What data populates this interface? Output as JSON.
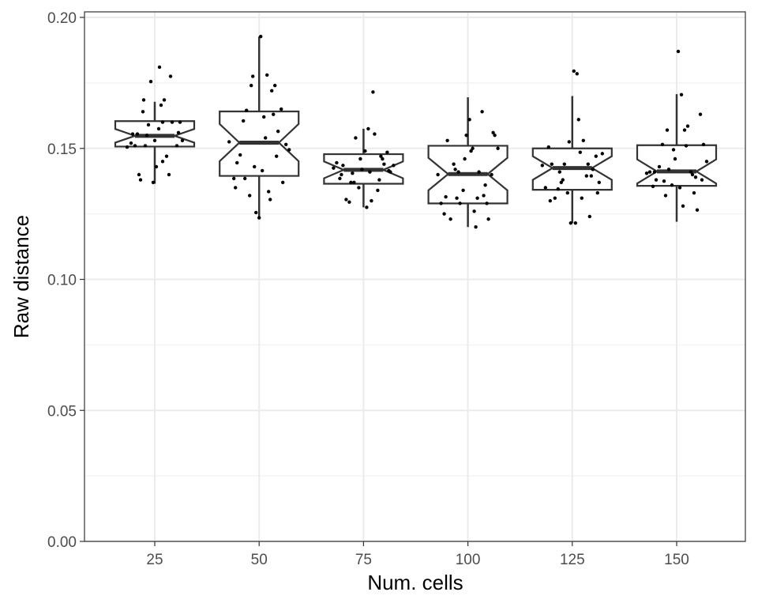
{
  "chart_data": {
    "type": "box",
    "notched": true,
    "jitter_points": true,
    "title": "",
    "xlabel": "Num. cells",
    "ylabel": "Raw distance",
    "categories": [
      "25",
      "50",
      "75",
      "100",
      "125",
      "150"
    ],
    "ylim": [
      0,
      0.2
    ],
    "yticks": [
      0.0,
      0.05,
      0.1,
      0.15,
      0.2
    ],
    "ytick_labels": [
      "0.00",
      "0.05",
      "0.10",
      "0.15",
      "0.20"
    ],
    "grid": true,
    "legend": "none",
    "colors": {
      "box_stroke": "#333333",
      "points": "#000000",
      "grid_major": "#ebebeb",
      "grid_minor": "#f2f2f2",
      "panel_border": "#333333"
    },
    "boxes": [
      {
        "category": "25",
        "whisker_low": 0.1365,
        "q1": 0.1507,
        "median": 0.1548,
        "q3": 0.1604,
        "whisker_high": 0.1678,
        "notch_low": 0.1522,
        "notch_high": 0.1574
      },
      {
        "category": "50",
        "whisker_low": 0.1232,
        "q1": 0.1395,
        "median": 0.1522,
        "q3": 0.1641,
        "whisker_high": 0.1927,
        "notch_low": 0.1451,
        "notch_high": 0.1593
      },
      {
        "category": "75",
        "whisker_low": 0.1275,
        "q1": 0.1365,
        "median": 0.1418,
        "q3": 0.1478,
        "whisker_high": 0.1575,
        "notch_low": 0.1386,
        "notch_high": 0.145
      },
      {
        "category": "100",
        "whisker_low": 0.12,
        "q1": 0.129,
        "median": 0.1402,
        "q3": 0.151,
        "whisker_high": 0.1695,
        "notch_low": 0.134,
        "notch_high": 0.1464
      },
      {
        "category": "125",
        "whisker_low": 0.1215,
        "q1": 0.1342,
        "median": 0.1425,
        "q3": 0.15,
        "whisker_high": 0.17,
        "notch_low": 0.138,
        "notch_high": 0.147
      },
      {
        "category": "150",
        "whisker_low": 0.122,
        "q1": 0.1357,
        "median": 0.1412,
        "q3": 0.1512,
        "whisker_high": 0.1707,
        "notch_low": 0.1366,
        "notch_high": 0.1458
      }
    ],
    "points": [
      {
        "category": "25",
        "x_offset": [
          -0.35,
          -0.3,
          -0.25,
          -0.2,
          -0.18,
          -0.15,
          -0.12,
          -0.1,
          -0.08,
          -0.05,
          -0.02,
          0.0,
          0.02,
          0.05,
          0.08,
          0.1,
          0.12,
          0.15,
          0.18,
          0.22,
          0.28,
          0.32,
          0.35,
          -0.28,
          -0.14,
          0.06,
          0.2,
          -0.22,
          0.1,
          0.3
        ],
        "y": [
          0.1505,
          0.152,
          0.151,
          0.14,
          0.138,
          0.164,
          0.151,
          0.155,
          0.159,
          0.1755,
          0.137,
          0.153,
          0.143,
          0.1575,
          0.1665,
          0.16,
          0.1685,
          0.147,
          0.14,
          0.16,
          0.151,
          0.16,
          0.153,
          0.1555,
          0.1685,
          0.181,
          0.1775,
          0.1555,
          0.145,
          0.156
        ]
      },
      {
        "category": "50",
        "x_offset": [
          -0.38,
          -0.32,
          -0.28,
          -0.24,
          -0.2,
          -0.16,
          -0.12,
          -0.08,
          -0.04,
          0.0,
          0.04,
          0.08,
          0.12,
          0.16,
          0.2,
          0.24,
          0.28,
          0.34,
          0.38,
          -0.3,
          -0.18,
          -0.06,
          0.06,
          0.18,
          0.3,
          -0.1,
          0.14,
          0.02,
          0.1,
          0.22
        ],
        "y": [
          0.1525,
          0.1385,
          0.1445,
          0.1475,
          0.1605,
          0.1645,
          0.132,
          0.1775,
          0.1255,
          0.1235,
          0.1415,
          0.154,
          0.1335,
          0.172,
          0.174,
          0.1565,
          0.165,
          0.1515,
          0.1495,
          0.135,
          0.1385,
          0.143,
          0.162,
          0.163,
          0.137,
          0.174,
          0.1305,
          0.1927,
          0.178,
          0.147
        ]
      },
      {
        "category": "75",
        "x_offset": [
          -0.38,
          -0.34,
          -0.3,
          -0.26,
          -0.22,
          -0.18,
          -0.14,
          -0.1,
          -0.06,
          -0.02,
          0.02,
          0.06,
          0.1,
          0.14,
          0.18,
          0.22,
          0.26,
          0.3,
          0.34,
          0.38,
          -0.28,
          -0.16,
          -0.04,
          0.08,
          0.2,
          0.32,
          -0.12,
          0.04,
          0.12,
          0.24
        ],
        "y": [
          0.1425,
          0.1445,
          0.1385,
          0.1435,
          0.1305,
          0.1295,
          0.1405,
          0.154,
          0.135,
          0.142,
          0.149,
          0.1575,
          0.13,
          0.1555,
          0.134,
          0.147,
          0.144,
          0.1485,
          0.141,
          0.1435,
          0.14,
          0.137,
          0.146,
          0.141,
          0.138,
          0.1415,
          0.137,
          0.1275,
          0.1715,
          0.146
        ]
      },
      {
        "category": "100",
        "x_offset": [
          -0.38,
          -0.34,
          -0.3,
          -0.26,
          -0.22,
          -0.18,
          -0.14,
          -0.1,
          -0.06,
          -0.02,
          0.02,
          0.06,
          0.1,
          0.14,
          0.18,
          0.22,
          0.26,
          0.3,
          0.34,
          0.38,
          -0.28,
          -0.16,
          -0.04,
          0.08,
          0.2,
          0.32,
          -0.12,
          0.04,
          0.12,
          0.24
        ],
        "y": [
          0.14,
          0.129,
          0.125,
          0.153,
          0.123,
          0.144,
          0.131,
          0.129,
          0.134,
          0.155,
          0.161,
          0.15,
          0.12,
          0.141,
          0.164,
          0.136,
          0.123,
          0.14,
          0.155,
          0.15,
          0.1315,
          0.142,
          0.146,
          0.126,
          0.132,
          0.156,
          0.141,
          0.149,
          0.131,
          0.129
        ]
      },
      {
        "category": "125",
        "x_offset": [
          -0.38,
          -0.34,
          -0.3,
          -0.26,
          -0.22,
          -0.18,
          -0.14,
          -0.1,
          -0.06,
          -0.02,
          0.02,
          0.06,
          0.1,
          0.14,
          0.18,
          0.22,
          0.26,
          0.3,
          0.34,
          0.38,
          -0.28,
          -0.16,
          -0.04,
          0.08,
          0.2,
          0.32,
          -0.12,
          0.04,
          0.12,
          0.24
        ],
        "y": [
          0.1435,
          0.135,
          0.1505,
          0.144,
          0.131,
          0.1345,
          0.137,
          0.144,
          0.133,
          0.1215,
          0.1795,
          0.1785,
          0.1485,
          0.153,
          0.1395,
          0.124,
          0.142,
          0.147,
          0.137,
          0.148,
          0.13,
          0.141,
          0.1525,
          0.161,
          0.144,
          0.133,
          0.138,
          0.1215,
          0.131,
          0.1395
        ]
      },
      {
        "category": "150",
        "x_offset": [
          -0.38,
          -0.34,
          -0.3,
          -0.26,
          -0.22,
          -0.18,
          -0.14,
          -0.1,
          -0.06,
          -0.02,
          0.02,
          0.06,
          0.1,
          0.14,
          0.18,
          0.22,
          0.26,
          0.3,
          0.34,
          0.38,
          -0.28,
          -0.16,
          -0.04,
          0.08,
          0.2,
          0.32,
          -0.12,
          0.04,
          0.12,
          0.24
        ],
        "y": [
          0.1405,
          0.141,
          0.1355,
          0.138,
          0.143,
          0.1515,
          0.132,
          0.142,
          0.136,
          0.146,
          0.187,
          0.1705,
          0.157,
          0.1585,
          0.141,
          0.133,
          0.1265,
          0.163,
          0.1515,
          0.145,
          0.141,
          0.1375,
          0.1495,
          0.128,
          0.14,
          0.138,
          0.157,
          0.135,
          0.151,
          0.139
        ]
      }
    ]
  }
}
